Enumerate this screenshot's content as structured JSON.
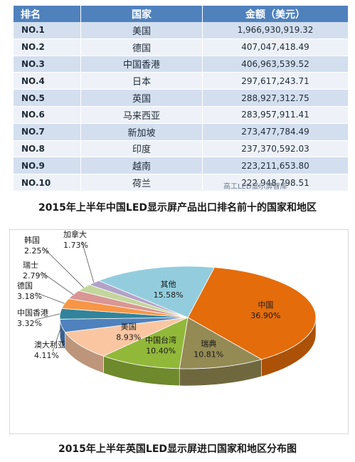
{
  "table": {
    "headers": [
      "排名",
      "国家",
      "金额（美元）"
    ],
    "rows": [
      {
        "rank": "NO.1",
        "country": "美国",
        "amount": "1,966,930,919.32"
      },
      {
        "rank": "NO.2",
        "country": "德国",
        "amount": "407,047,418.49"
      },
      {
        "rank": "NO.3",
        "country": "中国香港",
        "amount": "406,963,539.52"
      },
      {
        "rank": "NO.4",
        "country": "日本",
        "amount": "297,617,243.71"
      },
      {
        "rank": "NO.5",
        "country": "英国",
        "amount": "288,927,312.75"
      },
      {
        "rank": "NO.6",
        "country": "马来西亚",
        "amount": "283,957,911.41"
      },
      {
        "rank": "NO.7",
        "country": "新加坡",
        "amount": "273,477,784.49"
      },
      {
        "rank": "NO.8",
        "country": "印度",
        "amount": "237,370,592.03"
      },
      {
        "rank": "NO.9",
        "country": "越南",
        "amount": "223,211,653.80"
      },
      {
        "rank": "NO.10",
        "country": "荷兰",
        "amount": "222,948,798.51"
      }
    ],
    "caption": "2015年上半年中国LED显示屏产品出口排名前十的国家和地区",
    "watermark": "高工LED显示屏智库"
  },
  "chart_data": {
    "type": "pie",
    "title": "2015年上半年英国LED显示屏进口国家和地区分布图",
    "slices": [
      {
        "label": "中国",
        "value": 36.9,
        "display": "36.90%",
        "color": "#e46c0a"
      },
      {
        "label": "瑞典",
        "value": 10.81,
        "display": "10.81%",
        "color": "#948a54"
      },
      {
        "label": "中国台湾",
        "value": 10.4,
        "display": "10.40%",
        "color": "#92b83a"
      },
      {
        "label": "美国",
        "value": 8.93,
        "display": "8.93%",
        "color": "#fac6a2"
      },
      {
        "label": "澳大利亚",
        "value": 4.11,
        "display": "4.11%",
        "color": "#4f81bd"
      },
      {
        "label": "中国香港",
        "value": 3.32,
        "display": "3.32%",
        "color": "#31849b"
      },
      {
        "label": "德国",
        "value": 3.18,
        "display": "3.18%",
        "color": "#f79646"
      },
      {
        "label": "瑞士",
        "value": 2.79,
        "display": "2.79%",
        "color": "#d99694"
      },
      {
        "label": "韩国",
        "value": 2.25,
        "display": "2.25%",
        "color": "#c3d69b"
      },
      {
        "label": "加拿大",
        "value": 1.73,
        "display": "1.73%",
        "color": "#b3a2c7"
      },
      {
        "label": "其他",
        "value": 15.58,
        "display": "15.58%",
        "color": "#93cddd"
      }
    ]
  }
}
